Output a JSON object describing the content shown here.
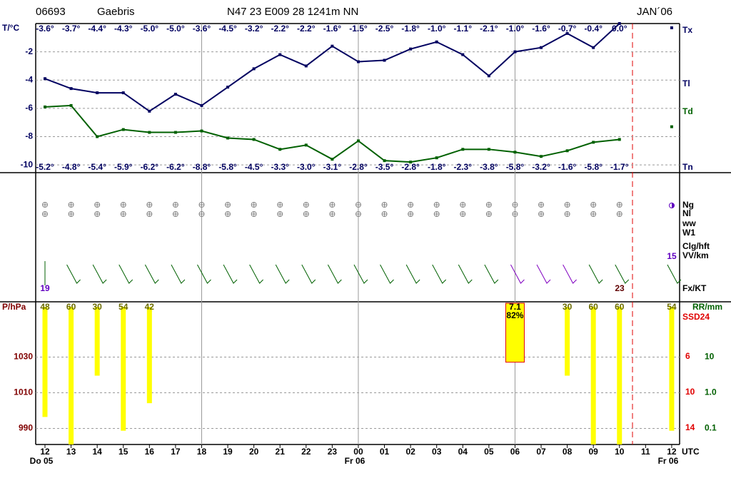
{
  "header": {
    "station": "06693",
    "name": "Gaebris",
    "position": "N47 23 E009 28 1241m NN",
    "month": "JAN´06"
  },
  "chart_data": [
    {
      "type": "line",
      "ylabel": "T/°C",
      "ylim": [
        -10.55,
        0
      ],
      "yticks": [
        -2,
        -4,
        -6,
        -8,
        -10
      ],
      "grid": true,
      "series": [
        {
          "color": "#000060",
          "values": [
            -3.9,
            -4.6,
            -4.9,
            -4.9,
            -6.2,
            -5.0,
            -5.8,
            -4.5,
            -3.2,
            -2.2,
            -3.0,
            -1.6,
            -2.7,
            -2.6,
            -1.8,
            -1.3,
            -2.2,
            -3.7,
            -2.0,
            -1.7,
            -0.7,
            -1.7,
            0.0,
            null,
            -0.3
          ]
        },
        {
          "color": "#006000",
          "values": [
            -5.9,
            -5.8,
            -8.0,
            -7.5,
            -7.7,
            -7.7,
            -7.6,
            -8.1,
            -8.2,
            -8.9,
            -8.6,
            -9.6,
            -8.3,
            -9.7,
            -9.8,
            -9.5,
            -8.9,
            -8.9,
            -9.1,
            -9.4,
            -9.0,
            -8.4,
            -8.2,
            null,
            -7.3
          ]
        }
      ],
      "top_labels": [
        "-3.6°",
        "-3.7°",
        "-4.4°",
        "-4.3°",
        "-5.0°",
        "-5.0°",
        "-3.6°",
        "-4.5°",
        "-3.2°",
        "-2.2°",
        "-2.2°",
        "-1.6°",
        "-1.5°",
        "-2.5°",
        "-1.8°",
        "-1.0°",
        "-1.1°",
        "-2.1°",
        "-1.0°",
        "-1.6°",
        "-0.7°",
        "-0.4°",
        "0.0°"
      ],
      "bottom_labels": [
        "-5.2°",
        "-4.8°",
        "-5.4°",
        "-5.9°",
        "-6.2°",
        "-6.2°",
        "-8.8°",
        "-5.8°",
        "-4.5°",
        "-3.3°",
        "-3.0°",
        "-3.1°",
        "-2.8°",
        "-3.5°",
        "-2.8°",
        "-1.8°",
        "-2.3°",
        "-3.8°",
        "-5.8°",
        "-3.2°",
        "-1.6°",
        "-5.8°",
        "-1.7°"
      ],
      "right_labels": [
        "Tx",
        "Tl",
        "Td",
        "Tn"
      ]
    },
    {
      "type": "bar",
      "ylabel": "P/hPa",
      "ylim": [
        981,
        1061
      ],
      "yticks": [
        990,
        1010,
        1030
      ],
      "categories": [
        "12",
        "13",
        "14",
        "15",
        "16",
        "17",
        "18",
        "19",
        "20",
        "21",
        "22",
        "23",
        "00",
        "01",
        "02",
        "03",
        "04",
        "05",
        "06",
        "07",
        "08",
        "09",
        "10",
        "11",
        "12"
      ],
      "day_labels": [
        "Do 05",
        null,
        null,
        null,
        null,
        null,
        null,
        null,
        null,
        null,
        null,
        null,
        "Fr 06",
        null,
        null,
        null,
        null,
        null,
        null,
        null,
        null,
        null,
        null,
        null,
        "Fr 06"
      ],
      "x_unit": "UTC",
      "y2lim": [
        -2.2,
        60
      ],
      "series": [
        {
          "color": "#ffff00",
          "axis": "y2",
          "values": [
            48,
            60,
            30,
            54,
            42,
            null,
            null,
            null,
            null,
            null,
            null,
            null,
            null,
            null,
            null,
            null,
            null,
            null,
            null,
            null,
            30,
            60,
            60,
            null,
            54
          ]
        }
      ],
      "rr_label": "RR/mm",
      "rr_log": true,
      "rr_lim": [
        0.035,
        350
      ],
      "rr_ticks": [
        10,
        {
          "value": 1,
          "label": "1.0"
        },
        {
          "value": 0.1,
          "label": "0.1"
        }
      ],
      "rr_values": [
        null,
        null,
        null,
        null,
        null,
        null,
        null,
        null,
        null,
        null,
        null,
        null,
        null,
        null,
        null,
        null,
        null,
        null,
        7.1,
        null,
        null,
        null,
        null,
        null,
        null
      ],
      "rr_probability": [
        null,
        null,
        null,
        null,
        null,
        null,
        null,
        null,
        null,
        null,
        null,
        null,
        null,
        null,
        null,
        null,
        null,
        null,
        82,
        null,
        null,
        null,
        null,
        null,
        null
      ],
      "rr_probability_labels": [
        null,
        null,
        null,
        null,
        null,
        null,
        null,
        null,
        null,
        null,
        null,
        null,
        null,
        null,
        null,
        null,
        null,
        null,
        "82%",
        null,
        null,
        null,
        null,
        null,
        null
      ],
      "ssd_label": "SSD24",
      "y3lim": [
        -0.16,
        15.84
      ],
      "y3ticks": [
        6,
        10,
        14
      ]
    }
  ],
  "middle_panel": {
    "labels": [
      "Ng",
      "Nl",
      "ww",
      "W1",
      "Clg/hft",
      "VV/km",
      "Fx/KT"
    ],
    "annotations": [
      "19",
      "23",
      "15"
    ]
  }
}
